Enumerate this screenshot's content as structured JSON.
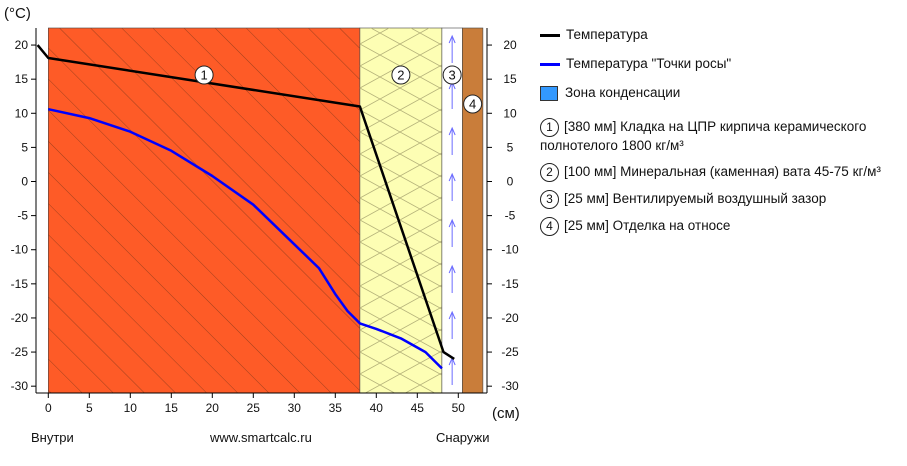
{
  "chart_data": {
    "type": "line",
    "unit_y": "(°C)",
    "unit_x": "(см)",
    "xlim": [
      -1.5,
      53.5
    ],
    "ylim": [
      -31,
      22.5
    ],
    "x_ticks": [
      0,
      5,
      10,
      15,
      20,
      25,
      30,
      35,
      40,
      45,
      50
    ],
    "y_ticks": [
      20,
      15,
      10,
      5,
      0,
      -5,
      -10,
      -15,
      -20,
      -25,
      -30
    ],
    "layers": [
      {
        "num": "1",
        "from": 0,
        "to": 38,
        "color": "#fe5b27",
        "pattern": "hatch",
        "label": "[380 мм] Кладка на ЦПР кирпича керамического полнотелого 1800 кг/м³"
      },
      {
        "num": "2",
        "from": 38,
        "to": 48,
        "color": "#fdfeb4",
        "pattern": "wool",
        "label": "[100 мм] Минеральная (каменная) вата 45-75 кг/м³"
      },
      {
        "num": "3",
        "from": 48,
        "to": 50.5,
        "color": "#ffffff",
        "pattern": "air",
        "label": "[25 мм] Вентилируемый воздушный зазор"
      },
      {
        "num": "4",
        "from": 50.5,
        "to": 53,
        "color": "#c97d3a",
        "pattern": "solid",
        "label": "[25 мм] Отделка на относе"
      }
    ],
    "series": [
      {
        "name": "Температура",
        "color": "#000000",
        "x": [
          -1.3,
          0,
          38,
          48.2,
          49.5
        ],
        "y": [
          20,
          18.1,
          11,
          -25,
          -26
        ]
      },
      {
        "name": "Температура \"Точки росы\"",
        "color": "#0000ff",
        "x": [
          0,
          5,
          10,
          15,
          20,
          25,
          30,
          33,
          35,
          36.5,
          37.5,
          38,
          40,
          43,
          46,
          48
        ],
        "y": [
          10.6,
          9.3,
          7.3,
          4.5,
          0.8,
          -3.4,
          -9.2,
          -12.7,
          -16.5,
          -19,
          -20.2,
          -20.8,
          -21.6,
          -23,
          -25,
          -27.4
        ]
      }
    ],
    "condensation_zone_label": "Зона конденсации",
    "condensation_zone_color": "#3399ff"
  },
  "footer": {
    "left": "Внутри",
    "center": "www.smartcalc.ru",
    "right": "Снаружи"
  }
}
